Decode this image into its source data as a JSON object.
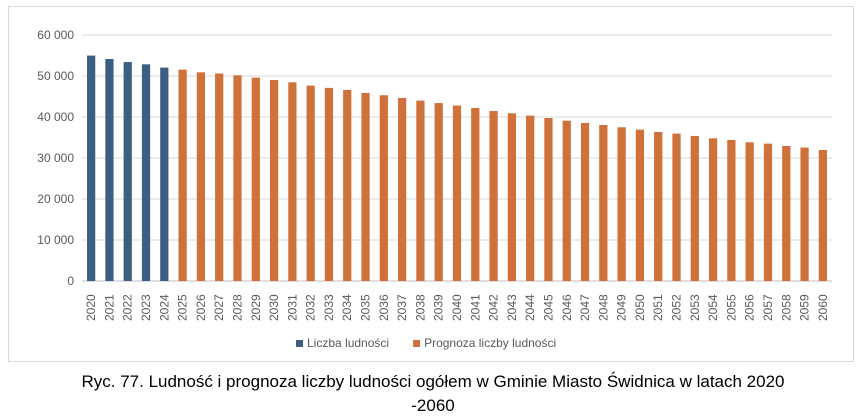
{
  "chart_data": {
    "type": "bar",
    "title": "",
    "xlabel": "",
    "ylabel": "",
    "ylim": [
      0,
      60000
    ],
    "yticks": [
      0,
      10000,
      20000,
      30000,
      40000,
      50000,
      60000
    ],
    "ytick_labels": [
      "0",
      "10 000",
      "20 000",
      "30 000",
      "40 000",
      "50 000",
      "60 000"
    ],
    "grid": true,
    "legend_position": "bottom",
    "categories": [
      "2020",
      "2021",
      "2022",
      "2023",
      "2024",
      "2025",
      "2026",
      "2027",
      "2028",
      "2029",
      "2030",
      "2031",
      "2032",
      "2033",
      "2034",
      "2035",
      "2036",
      "2037",
      "2038",
      "2039",
      "2040",
      "2041",
      "2042",
      "2043",
      "2044",
      "2045",
      "2046",
      "2047",
      "2048",
      "2049",
      "2050",
      "2051",
      "2052",
      "2053",
      "2054",
      "2055",
      "2056",
      "2057",
      "2058",
      "2059",
      "2060"
    ],
    "series": [
      {
        "name": "Liczba ludności",
        "color": "#3b5f82",
        "values": [
          54980,
          54150,
          53400,
          52850,
          52050,
          null,
          null,
          null,
          null,
          null,
          null,
          null,
          null,
          null,
          null,
          null,
          null,
          null,
          null,
          null,
          null,
          null,
          null,
          null,
          null,
          null,
          null,
          null,
          null,
          null,
          null,
          null,
          null,
          null,
          null,
          null,
          null,
          null,
          null,
          null,
          null
        ]
      },
      {
        "name": "Prognoza liczby ludności",
        "color": "#d0703a",
        "values": [
          null,
          null,
          null,
          null,
          null,
          51550,
          50900,
          50600,
          50170,
          49600,
          49030,
          48460,
          47650,
          47100,
          46600,
          45860,
          45300,
          44650,
          44000,
          43400,
          42800,
          42200,
          41460,
          40900,
          40330,
          39760,
          39100,
          38540,
          38050,
          37500,
          36920,
          36350,
          35950,
          35380,
          34800,
          34400,
          33830,
          33500,
          32930,
          32540,
          31950
        ]
      }
    ]
  },
  "caption": {
    "line1": "Ryc. 77. Ludność i prognoza liczby ludności ogółem w Gminie Miasto Świdnica w latach 2020",
    "line2": "-2060"
  }
}
